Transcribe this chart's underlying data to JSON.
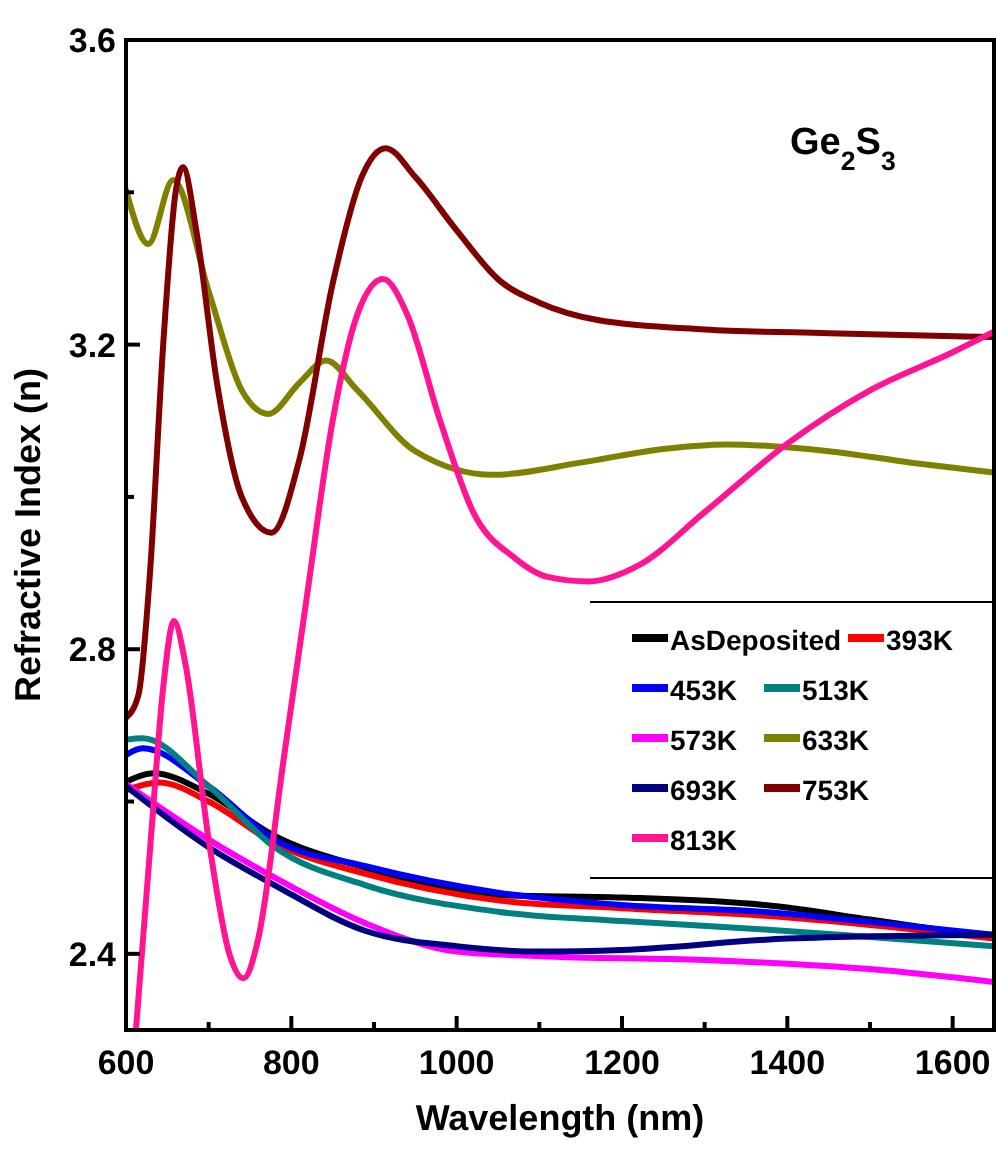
{
  "chart_data": {
    "type": "line",
    "xlabel": "Wavelength (nm)",
    "ylabel": "Refractive Index (n)",
    "annotations": [
      "Ge$_{2}$S$_{3}$"
    ],
    "xlim": [
      600,
      1650
    ],
    "ylim": [
      2.3,
      3.6
    ],
    "xticks": [
      600,
      {
        "value": 700,
        "label": null
      },
      800,
      {
        "value": 900,
        "label": null
      },
      1000,
      {
        "value": 1100,
        "label": null
      },
      1200,
      {
        "value": 1300,
        "label": null
      },
      1400,
      {
        "value": 1500,
        "label": null
      },
      1600
    ],
    "yticks": [
      2.4,
      {
        "value": 2.6,
        "label": null
      },
      2.8,
      {
        "value": 3.0,
        "label": null
      },
      3.2,
      {
        "value": 3.4,
        "label": null
      },
      3.6
    ],
    "grid": false,
    "legend": "bottom right",
    "line_style": "solid",
    "series": [
      {
        "name": "AsDeposited",
        "color": "#000000",
        "x": [
          600,
          633,
          700,
          778,
          890,
          1052,
          1200,
          1373,
          1500,
          1650
        ],
        "values": [
          2.626,
          2.637,
          2.61,
          2.556,
          2.513,
          2.477,
          2.474,
          2.464,
          2.445,
          2.421
        ]
      },
      {
        "name": "393K",
        "color": "#ff0000",
        "x": [
          600,
          640,
          700,
          780,
          890,
          1052,
          1200,
          1373,
          1500,
          1650
        ],
        "values": [
          2.615,
          2.625,
          2.6,
          2.545,
          2.505,
          2.47,
          2.46,
          2.45,
          2.438,
          2.42
        ]
      },
      {
        "name": "453K",
        "color": "#0000ff",
        "x": [
          600,
          620,
          700,
          780,
          890,
          1052,
          1200,
          1373,
          1500,
          1650
        ],
        "values": [
          2.661,
          2.67,
          2.62,
          2.55,
          2.515,
          2.48,
          2.464,
          2.455,
          2.442,
          2.425
        ]
      },
      {
        "name": "513K",
        "color": "#008080",
        "x": [
          600,
          620,
          700,
          780,
          890,
          1052,
          1200,
          1373,
          1500,
          1650
        ],
        "values": [
          2.681,
          2.683,
          2.62,
          2.54,
          2.49,
          2.455,
          2.443,
          2.432,
          2.422,
          2.41
        ]
      },
      {
        "name": "573K",
        "color": "#ff00ff",
        "x": [
          600,
          700,
          780,
          890,
          1000,
          1100,
          1300,
          1500,
          1650
        ],
        "values": [
          2.623,
          2.55,
          2.5,
          2.44,
          2.403,
          2.397,
          2.392,
          2.38,
          2.363
        ]
      },
      {
        "name": "633K",
        "color": "#808000",
        "x": [
          600,
          627,
          657,
          700,
          740,
          772,
          810,
          842,
          880,
          950,
          1044,
          1150,
          1250,
          1325,
          1450,
          1550,
          1650
        ],
        "values": [
          3.403,
          3.332,
          3.416,
          3.27,
          3.14,
          3.109,
          3.15,
          3.179,
          3.14,
          3.06,
          3.029,
          3.045,
          3.063,
          3.069,
          3.06,
          3.045,
          3.032
        ]
      },
      {
        "name": "693K",
        "color": "#000080",
        "x": [
          600,
          700,
          780,
          890,
          1000,
          1100,
          1200,
          1400,
          1650
        ],
        "values": [
          2.62,
          2.54,
          2.49,
          2.43,
          2.41,
          2.403,
          2.405,
          2.42,
          2.425
        ]
      },
      {
        "name": "753K",
        "color": "#800000",
        "x": [
          600,
          615,
          629,
          645,
          660,
          669,
          685,
          710,
          740,
          776,
          810,
          850,
          885,
          914,
          950,
          1000,
          1052,
          1100,
          1172,
          1300,
          1450,
          1650
        ],
        "values": [
          2.71,
          2.74,
          2.9,
          3.2,
          3.4,
          3.433,
          3.35,
          3.15,
          3.0,
          2.953,
          3.05,
          3.28,
          3.42,
          3.458,
          3.42,
          3.35,
          3.284,
          3.255,
          3.232,
          3.22,
          3.215,
          3.21
        ]
      },
      {
        "name": "813K",
        "color": "#ff1493",
        "x": [
          612,
          630,
          645,
          658,
          672,
          700,
          725,
          742,
          760,
          790,
          818,
          850,
          880,
          911,
          940,
          980,
          1020,
          1070,
          1110,
          1160,
          1220,
          1300,
          1400,
          1500,
          1600,
          1650
        ],
        "values": [
          2.3,
          2.55,
          2.75,
          2.837,
          2.78,
          2.55,
          2.4,
          2.368,
          2.42,
          2.65,
          2.863,
          3.1,
          3.24,
          3.286,
          3.24,
          3.1,
          2.98,
          2.92,
          2.895,
          2.889,
          2.91,
          2.98,
          3.07,
          3.14,
          3.19,
          3.217
        ]
      }
    ]
  }
}
